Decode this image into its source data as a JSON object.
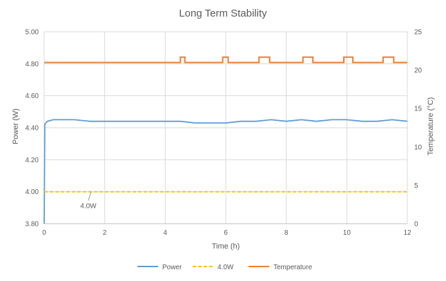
{
  "chart_data": {
    "type": "line",
    "title": "Long Term Stability",
    "xlabel": "Time (h)",
    "ylabel": "Power (W)",
    "y2label": "Temperature (°C)",
    "xlim": [
      0,
      12
    ],
    "ylim": [
      3.8,
      5.0
    ],
    "y2lim": [
      0,
      25
    ],
    "x_ticks": [
      0,
      2,
      4,
      6,
      8,
      10,
      12
    ],
    "y_ticks": [
      "3.80",
      "4.00",
      "4.20",
      "4.40",
      "4.60",
      "4.80",
      "5.00"
    ],
    "y2_ticks": [
      0,
      5,
      10,
      15,
      20,
      25
    ],
    "grid": true,
    "legend": "bottom",
    "series": [
      {
        "name": "Power",
        "axis": "left",
        "color": "#5b9bd5",
        "style": "solid",
        "x": [
          0,
          0.02,
          0.05,
          0.1,
          0.3,
          0.6,
          1.0,
          1.5,
          2.0,
          2.8,
          3.5,
          4.0,
          4.5,
          5.0,
          5.5,
          6.0,
          6.5,
          7.0,
          7.5,
          8.0,
          8.5,
          9.0,
          9.5,
          10.0,
          10.5,
          11.0,
          11.5,
          12.0
        ],
        "y": [
          3.8,
          4.42,
          4.43,
          4.44,
          4.45,
          4.45,
          4.45,
          4.44,
          4.44,
          4.44,
          4.44,
          4.44,
          4.44,
          4.43,
          4.43,
          4.43,
          4.44,
          4.44,
          4.45,
          4.44,
          4.45,
          4.44,
          4.45,
          4.45,
          4.44,
          4.44,
          4.45,
          4.44
        ]
      },
      {
        "name": "4.0W",
        "axis": "left",
        "color": "#ffc000",
        "style": "dashed",
        "x": [
          0,
          12
        ],
        "y": [
          4.0,
          4.0
        ]
      },
      {
        "name": "Temperature",
        "axis": "right",
        "color": "#ed7d31",
        "style": "solid",
        "x": [
          0,
          4.5,
          4.5,
          4.65,
          4.65,
          5.9,
          5.9,
          6.08,
          6.08,
          7.1,
          7.1,
          7.45,
          7.45,
          8.55,
          8.55,
          8.88,
          8.88,
          9.9,
          9.9,
          10.2,
          10.2,
          11.2,
          11.2,
          11.55,
          11.55,
          12
        ],
        "y": [
          21,
          21,
          21.7,
          21.7,
          21,
          21,
          21.7,
          21.7,
          21,
          21,
          21.7,
          21.7,
          21,
          21,
          21.7,
          21.7,
          21,
          21,
          21.7,
          21.7,
          21,
          21,
          21.7,
          21.7,
          21,
          21
        ]
      }
    ],
    "annotations": [
      {
        "text": "4.0W",
        "x": 1.55,
        "y": 4.0
      }
    ]
  }
}
